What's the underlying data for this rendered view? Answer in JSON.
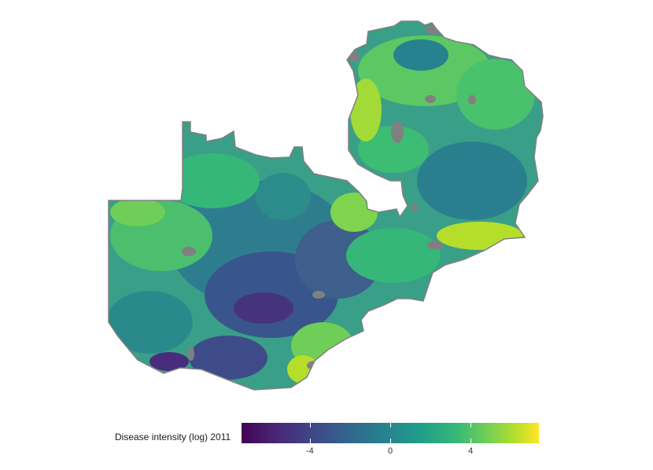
{
  "legend": {
    "title": "Disease intensity (log) 2011",
    "ticks": [
      "-4",
      "0",
      "4"
    ],
    "tick_values": [
      -4,
      0,
      4
    ],
    "range": [
      -7.4,
      7.4
    ],
    "palette": [
      "#440154",
      "#482878",
      "#3e4989",
      "#31688e",
      "#26828e",
      "#1f9e89",
      "#35b779",
      "#6ece58",
      "#b5de2b",
      "#fde725"
    ],
    "missing_color": "#808080"
  }
}
